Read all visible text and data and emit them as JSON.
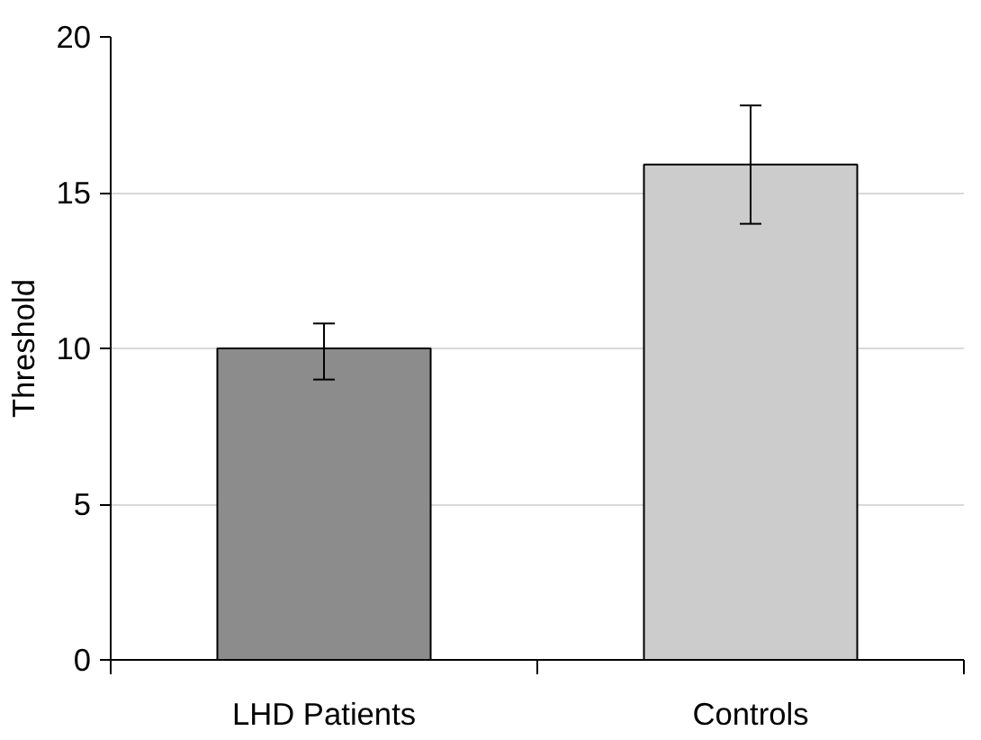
{
  "chart_data": {
    "type": "bar",
    "ylabel": "Threshold",
    "categories": [
      "LHD Patients",
      "Controls"
    ],
    "values": [
      10,
      15.9
    ],
    "colors": [
      "#8c8c8c",
      "#cccccc"
    ],
    "errors": [
      [
        9.0,
        10.8
      ],
      [
        14.0,
        17.8
      ]
    ],
    "ylim": [
      0,
      20
    ],
    "yticks": [
      0,
      5,
      10,
      15,
      20
    ],
    "grid": "y"
  }
}
